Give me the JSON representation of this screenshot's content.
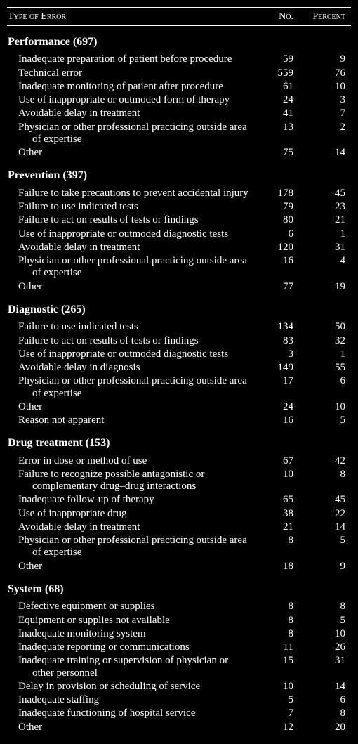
{
  "header": {
    "c1": "Type of Error",
    "c2": "No.",
    "c3": "Percent"
  },
  "sections": [
    {
      "title": "Performance (697)",
      "rows": [
        {
          "label": "Inadequate preparation of patient before procedure",
          "no": "59",
          "pct": "9"
        },
        {
          "label": "Technical error",
          "no": "559",
          "pct": "76"
        },
        {
          "label": "Inadequate monitoring of patient after procedure",
          "no": "61",
          "pct": "10"
        },
        {
          "label": "Use of inappropriate or outmoded form of therapy",
          "no": "24",
          "pct": "3"
        },
        {
          "label": "Avoidable delay in treatment",
          "no": "41",
          "pct": "7"
        },
        {
          "label": "Physician or other professional practicing outside area of expertise",
          "no": "13",
          "pct": "2"
        },
        {
          "label": "Other",
          "no": "75",
          "pct": "14"
        }
      ]
    },
    {
      "title": "Prevention (397)",
      "rows": [
        {
          "label": "Failure to take precautions to prevent accidental injury",
          "no": "178",
          "pct": "45"
        },
        {
          "label": "Failure to use indicated tests",
          "no": "79",
          "pct": "23"
        },
        {
          "label": "Failure to act on results of tests or findings",
          "no": "80",
          "pct": "21"
        },
        {
          "label": "Use of inappropriate or outmoded diagnostic tests",
          "no": "6",
          "pct": "1"
        },
        {
          "label": "Avoidable delay in treatment",
          "no": "120",
          "pct": "31"
        },
        {
          "label": "Physician or other professional practicing outside area of expertise",
          "no": "16",
          "pct": "4"
        },
        {
          "label": "Other",
          "no": "77",
          "pct": "19"
        }
      ]
    },
    {
      "title": "Diagnostic (265)",
      "rows": [
        {
          "label": "Failure to use indicated tests",
          "no": "134",
          "pct": "50"
        },
        {
          "label": "Failure to act on results of tests or findings",
          "no": "83",
          "pct": "32"
        },
        {
          "label": "Use of inappropriate or outmoded diagnostic tests",
          "no": "3",
          "pct": "1"
        },
        {
          "label": "Avoidable delay in diagnosis",
          "no": "149",
          "pct": "55"
        },
        {
          "label": "Physician or other professional practicing outside area of expertise",
          "no": "17",
          "pct": "6"
        },
        {
          "label": "Other",
          "no": "24",
          "pct": "10"
        },
        {
          "label": "Reason not apparent",
          "no": "16",
          "pct": "5"
        }
      ]
    },
    {
      "title": "Drug treatment (153)",
      "rows": [
        {
          "label": "Error in dose or method of use",
          "no": "67",
          "pct": "42"
        },
        {
          "label": "Failure to recognize possible antagonistic or complementary drug–drug interactions",
          "no": "10",
          "pct": "8"
        },
        {
          "label": "Inadequate follow-up of therapy",
          "no": "65",
          "pct": "45"
        },
        {
          "label": "Use of inappropriate drug",
          "no": "38",
          "pct": "22"
        },
        {
          "label": "Avoidable delay in treatment",
          "no": "21",
          "pct": "14"
        },
        {
          "label": "Physician or other professional practicing outside area of expertise",
          "no": "8",
          "pct": "5"
        },
        {
          "label": "Other",
          "no": "18",
          "pct": "9"
        }
      ]
    },
    {
      "title": "System (68)",
      "rows": [
        {
          "label": "Defective equipment or supplies",
          "no": "8",
          "pct": "8"
        },
        {
          "label": "Equipment or supplies not available",
          "no": "8",
          "pct": "5"
        },
        {
          "label": "Inadequate monitoring system",
          "no": "8",
          "pct": "10"
        },
        {
          "label": "Inadequate reporting or communications",
          "no": "11",
          "pct": "26"
        },
        {
          "label": "Inadequate training or supervision of physician or other personnel",
          "no": "15",
          "pct": "31"
        },
        {
          "label": "Delay in provision or scheduling of service",
          "no": "10",
          "pct": "14"
        },
        {
          "label": "Inadequate staffing",
          "no": "5",
          "pct": "6"
        },
        {
          "label": "Inadequate functioning of hospital service",
          "no": "7",
          "pct": "8"
        },
        {
          "label": "Other",
          "no": "12",
          "pct": "20"
        }
      ]
    }
  ]
}
